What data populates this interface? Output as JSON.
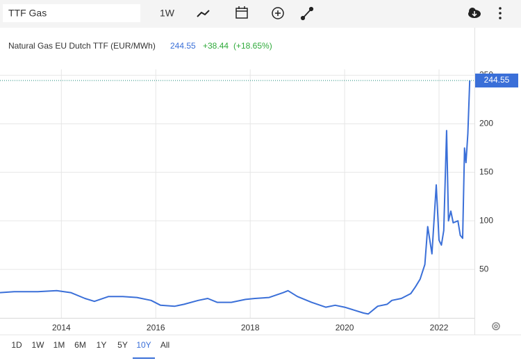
{
  "toolbar": {
    "search": "TTF Gas",
    "interval": "1W"
  },
  "chart_data": {
    "type": "line",
    "name": "Natural Gas EU Dutch TTF (EUR/MWh)",
    "last_value": 244.55,
    "change_label": "+38.44",
    "change_pct_label": "(+18.65%)",
    "x": [
      2012.7,
      2013.0,
      2013.5,
      2013.9,
      2014.2,
      2014.5,
      2014.7,
      2015.0,
      2015.3,
      2015.6,
      2015.9,
      2016.1,
      2016.4,
      2016.6,
      2016.9,
      2017.1,
      2017.3,
      2017.6,
      2017.9,
      2018.1,
      2018.4,
      2018.7,
      2018.8,
      2019.0,
      2019.3,
      2019.6,
      2019.8,
      2020.0,
      2020.2,
      2020.4,
      2020.5,
      2020.7,
      2020.9,
      2021.0,
      2021.2,
      2021.4,
      2021.5,
      2021.6,
      2021.7,
      2021.76,
      2021.85,
      2021.94,
      2022.0,
      2022.05,
      2022.1,
      2022.16,
      2022.2,
      2022.25,
      2022.3,
      2022.4,
      2022.45,
      2022.5,
      2022.54,
      2022.57,
      2022.61,
      2022.65
    ],
    "series": [
      {
        "name": "TTF",
        "color": "#3a6fd8",
        "values": [
          26,
          27,
          27,
          28,
          26,
          20,
          17,
          22,
          22,
          21,
          18,
          13,
          12,
          14,
          18,
          20,
          16,
          16,
          19,
          20,
          21,
          26,
          28,
          22,
          16,
          11,
          13,
          11,
          8,
          5,
          4,
          12,
          14,
          18,
          20,
          25,
          32,
          40,
          55,
          94,
          66,
          137,
          80,
          75,
          90,
          193,
          100,
          110,
          98,
          100,
          85,
          82,
          175,
          160,
          190,
          244.55
        ]
      }
    ],
    "xlim": [
      2012.7,
      2022.75
    ],
    "xticks": [
      2014,
      2016,
      2018,
      2020,
      2022
    ],
    "ylim": [
      0,
      256
    ],
    "yticks": [
      50,
      100,
      150,
      200,
      250
    ],
    "grid": true
  },
  "ranges": [
    "1D",
    "1W",
    "1M",
    "6M",
    "1Y",
    "5Y",
    "10Y",
    "All"
  ],
  "selected_range": 6
}
